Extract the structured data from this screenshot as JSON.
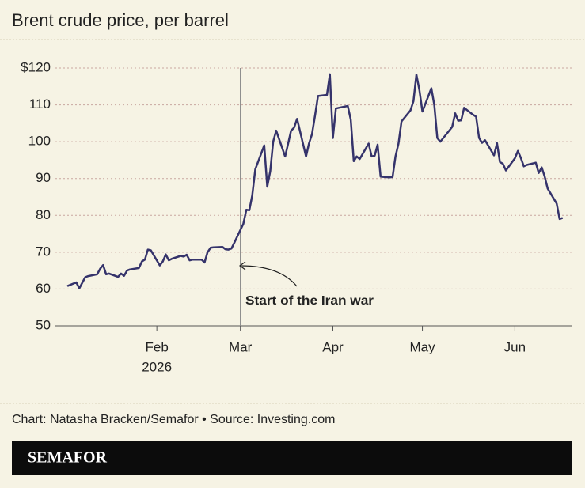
{
  "chart_data": {
    "type": "line",
    "title": "Brent crude price, per barrel",
    "x": [
      2,
      5,
      6,
      8,
      9,
      12,
      13,
      14,
      15,
      16,
      19,
      20,
      21,
      22,
      23,
      26,
      27,
      28,
      29,
      30,
      33,
      34,
      35,
      36,
      37,
      40,
      41,
      42,
      43,
      44,
      47,
      48,
      49,
      50,
      51,
      54,
      55,
      56,
      57,
      58,
      61,
      62,
      63,
      64,
      65,
      68,
      69,
      70,
      71,
      72,
      75,
      76,
      77,
      78,
      79,
      82,
      83,
      84,
      85,
      86,
      89,
      90,
      91,
      92,
      93,
      96,
      97,
      98,
      99,
      100,
      103,
      104,
      105,
      106,
      107,
      110,
      111,
      112,
      113,
      114,
      117,
      118,
      119,
      120,
      121,
      124,
      125,
      126,
      127,
      131,
      132,
      133,
      134,
      135,
      138,
      139,
      140,
      141,
      142,
      145,
      146,
      147,
      148,
      149,
      152,
      153,
      154,
      155,
      156,
      159,
      160,
      161,
      162,
      163,
      166,
      167,
      168
    ],
    "values": [
      60.8,
      61.8,
      60.2,
      63.2,
      63.5,
      64,
      65.5,
      66.5,
      64,
      64.2,
      63.3,
      64.2,
      63.6,
      65,
      65.3,
      65.7,
      67.5,
      68,
      70.7,
      70.5,
      66.4,
      67.5,
      69.4,
      67.8,
      68.2,
      69,
      68.8,
      69.3,
      67.8,
      68,
      68,
      67.2,
      70,
      71.2,
      71.3,
      71.4,
      70.8,
      70.7,
      71,
      72.6,
      77.7,
      81.5,
      81.4,
      85.5,
      92.5,
      99,
      87.8,
      92,
      100,
      103,
      96,
      99.5,
      103,
      103.8,
      106.2,
      96,
      99.5,
      102,
      107,
      112.4,
      112.7,
      118.3,
      101,
      109,
      109.2,
      109.7,
      106,
      94.7,
      96,
      95.3,
      99.5,
      96,
      96.2,
      99.2,
      90.5,
      90.3,
      90.4,
      96,
      99.5,
      105.5,
      108.5,
      111,
      118.2,
      114,
      108.2,
      114.5,
      110,
      101,
      100,
      104,
      107.7,
      105.7,
      105.8,
      109.2,
      107.3,
      106.8,
      101,
      99.7,
      100.4,
      96.3,
      99.6,
      94.5,
      94,
      92.2,
      95.5,
      97.5,
      95.6,
      93.3,
      93.7,
      94.3,
      91.5,
      93,
      90.5,
      87.3,
      83.2,
      79,
      79.3
    ],
    "color": "#35336b",
    "xlim": [
      -2,
      171
    ],
    "xticks": [
      {
        "value": 32,
        "label": "Feb"
      },
      {
        "value": 60,
        "label": "Mar"
      },
      {
        "value": 91,
        "label": "Apr"
      },
      {
        "value": 121,
        "label": "May"
      },
      {
        "value": 152,
        "label": "Jun"
      }
    ],
    "x_year_label": "2026",
    "ylim": [
      50,
      120
    ],
    "yticks": [
      50,
      60,
      70,
      80,
      90,
      100,
      110,
      {
        "value": 120,
        "label": "$120"
      }
    ],
    "grid": true,
    "event_x": 60,
    "annotation": "Start of the Iran war",
    "source": "Chart: Natasha Bracken/Semafor • Source: Investing.com",
    "brand": "SEMAFOR"
  }
}
